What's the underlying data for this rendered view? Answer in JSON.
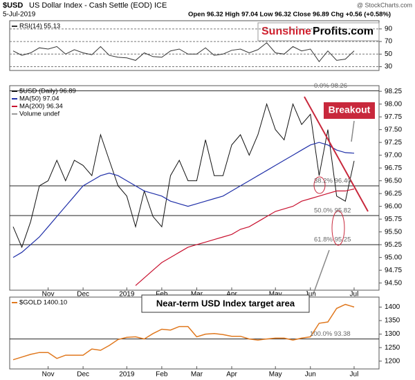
{
  "header": {
    "symbol": "$USD",
    "title": "US Dollar Index - Cash Settle (EOD) ICE",
    "date": "5-Jul-2019",
    "quote": "Open 96.32  High 97.04  Low 96.32  Close 96.89  Chg +0.56 (+0.58%)",
    "source": "@ StockCharts.com"
  },
  "logo": {
    "part1": "Sunshine",
    "part2": "Profits.com"
  },
  "chart_data": [
    {
      "type": "line",
      "name": "RSI(14) 55.13",
      "color": "#333333",
      "values": [
        55,
        48,
        52,
        60,
        58,
        62,
        50,
        57,
        52,
        49,
        62,
        48,
        45,
        44,
        40,
        52,
        46,
        45,
        55,
        58,
        50,
        50,
        60,
        48,
        50,
        56,
        58,
        52,
        57,
        68,
        52,
        50,
        62,
        55,
        58,
        38,
        55,
        40,
        42,
        55.13
      ],
      "ylim": [
        24,
        103
      ],
      "yticks": [
        30,
        50,
        70,
        90
      ],
      "grid": true
    },
    {
      "type": "line",
      "categories": [
        null,
        null,
        null,
        null,
        "Nov",
        null,
        null,
        null,
        "Dec",
        null,
        null,
        null,
        null,
        "2019",
        null,
        null,
        null,
        "Feb",
        null,
        null,
        null,
        "Mar",
        null,
        null,
        null,
        "Apr",
        null,
        null,
        null,
        null,
        "May",
        null,
        null,
        null,
        "Jun",
        null,
        null,
        null,
        null,
        "Jul"
      ],
      "series": [
        {
          "name": "$USD (Daily) 96.89",
          "color": "#111111",
          "values": [
            95.6,
            95.2,
            95.7,
            96.4,
            96.5,
            96.9,
            96.5,
            96.9,
            96.8,
            96.6,
            97.4,
            96.9,
            96.4,
            96.2,
            95.6,
            96.3,
            95.8,
            95.6,
            96.6,
            96.9,
            96.5,
            96.5,
            97.3,
            96.6,
            96.6,
            97.2,
            97.4,
            97.0,
            97.4,
            98.0,
            97.5,
            97.3,
            98.0,
            97.6,
            97.8,
            96.6,
            97.5,
            96.2,
            96.1,
            96.89
          ]
        },
        {
          "name": "MA(50) 97.04",
          "color": "#1f2fa8",
          "values": [
            95.0,
            95.1,
            95.25,
            95.4,
            95.6,
            95.8,
            96.0,
            96.2,
            96.4,
            96.5,
            96.6,
            96.65,
            96.6,
            96.5,
            96.4,
            96.3,
            96.25,
            96.2,
            96.1,
            96.05,
            96.0,
            96.05,
            96.1,
            96.15,
            96.2,
            96.3,
            96.4,
            96.5,
            96.6,
            96.7,
            96.8,
            96.9,
            97.0,
            97.1,
            97.2,
            97.25,
            97.2,
            97.1,
            97.05,
            97.04
          ]
        },
        {
          "name": "MA(200) 96.34",
          "color": "#c8102e",
          "values": [
            null,
            null,
            null,
            null,
            null,
            null,
            null,
            null,
            null,
            null,
            null,
            null,
            null,
            null,
            94.45,
            94.6,
            94.75,
            94.9,
            95.0,
            95.1,
            95.2,
            95.25,
            95.3,
            95.35,
            95.4,
            95.45,
            95.55,
            95.6,
            95.7,
            95.8,
            95.9,
            95.95,
            96.0,
            96.1,
            96.15,
            96.2,
            96.25,
            96.3,
            96.3,
            96.34
          ]
        }
      ],
      "legend_note": "Volume undef",
      "levels": [
        {
          "value": 98.26,
          "label": "0.0% 98.26"
        },
        {
          "value": 96.4,
          "label": "38.2% 96.40"
        },
        {
          "value": 95.82,
          "label": "50.0% 95.82"
        },
        {
          "value": 95.25,
          "label": "61.8% 95.25"
        }
      ],
      "annotations": [
        "Breakout",
        "Near-term USD Index target area"
      ],
      "ylim": [
        94.36,
        98.36
      ],
      "yticks": [
        {
          "value": 94.5,
          "label": "94.50"
        },
        94.75,
        {
          "value": 95,
          "label": "95.00"
        },
        95.25,
        {
          "value": 95.5,
          "label": "95.50"
        },
        95.75,
        {
          "value": 96,
          "label": "96.00"
        },
        96.25,
        {
          "value": 96.5,
          "label": "96.50"
        },
        96.75,
        {
          "value": 97,
          "label": "97.00"
        },
        97.25,
        {
          "value": 97.5,
          "label": "97.50"
        },
        97.75,
        {
          "value": 98,
          "label": "98.00"
        },
        98.25
      ]
    },
    {
      "type": "line",
      "name": "$GOLD 1400.10",
      "color": "#e0781e",
      "categories": [
        null,
        null,
        null,
        null,
        "Nov",
        null,
        null,
        null,
        "Dec",
        null,
        null,
        null,
        null,
        "2019",
        null,
        null,
        null,
        "Feb",
        null,
        null,
        null,
        "Mar",
        null,
        null,
        null,
        "Apr",
        null,
        null,
        null,
        null,
        "May",
        null,
        null,
        null,
        "Jun",
        null,
        null,
        null,
        null,
        "Jul"
      ],
      "values": [
        1205,
        1215,
        1225,
        1232,
        1232,
        1210,
        1222,
        1222,
        1222,
        1245,
        1240,
        1258,
        1280,
        1288,
        1290,
        1282,
        1302,
        1318,
        1315,
        1328,
        1328,
        1290,
        1300,
        1302,
        1298,
        1292,
        1292,
        1282,
        1278,
        1282,
        1285,
        1285,
        1278,
        1285,
        1290,
        1340,
        1345,
        1395,
        1410,
        1400.1
      ],
      "hline": 1282,
      "level_label": "100.0% 93.38",
      "ylim": [
        1171,
        1437
      ],
      "yticks": [
        1200,
        1250,
        1300,
        1350,
        1400
      ]
    }
  ]
}
